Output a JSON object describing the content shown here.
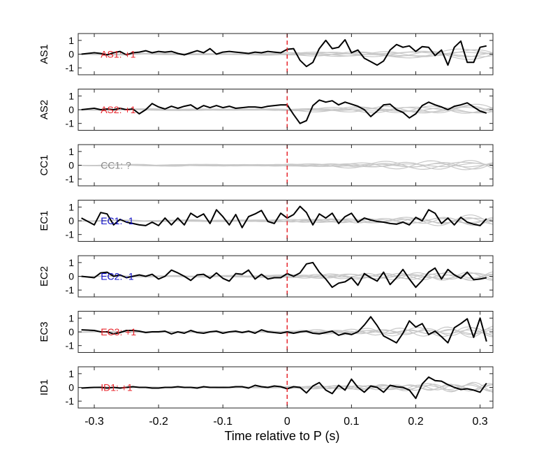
{
  "xlabel": "Time relative to P (s)",
  "xticks": [
    "-0.3",
    "-0.2",
    "-0.1",
    "0",
    "0.1",
    "0.2",
    "0.3"
  ],
  "xlim": [
    -0.325,
    0.32
  ],
  "ylim": [
    -1.5,
    1.5
  ],
  "yticks": [
    "1",
    "0",
    "-1"
  ],
  "colors": {
    "trace": "#000000",
    "background_traces": "#c8c8c8",
    "marker": "#e8242b",
    "positive": "#e8242b",
    "negative": "#1010c8",
    "unknown": "#888888"
  },
  "chart_data": [
    {
      "type": "line",
      "ylabel": "AS1",
      "annotation": "AS1: +1",
      "polarity": "positive",
      "series": [
        {
          "x": [
            -0.32,
            -0.3,
            -0.29,
            -0.28,
            -0.27,
            -0.26,
            -0.25,
            -0.24,
            -0.23,
            -0.22,
            -0.21,
            -0.2,
            -0.19,
            -0.18,
            -0.17,
            -0.16,
            -0.15,
            -0.14,
            -0.13,
            -0.12,
            -0.11,
            -0.1,
            -0.09,
            -0.08,
            -0.07,
            -0.06,
            -0.05,
            -0.04,
            -0.03,
            -0.02,
            -0.01,
            0,
            0.01,
            0.02,
            0.03,
            0.04,
            0.05,
            0.06,
            0.07,
            0.08,
            0.09,
            0.1,
            0.11,
            0.12,
            0.13,
            0.14,
            0.15,
            0.16,
            0.17,
            0.18,
            0.19,
            0.2,
            0.21,
            0.22,
            0.23,
            0.24,
            0.25,
            0.26,
            0.27,
            0.28,
            0.29,
            0.3,
            0.31
          ],
          "y": [
            0.0,
            0.1,
            0.05,
            -0.05,
            0.1,
            0.2,
            -0.05,
            0.1,
            0.15,
            0.25,
            0.1,
            0.2,
            0.15,
            0.2,
            0.05,
            -0.05,
            0.1,
            0.25,
            0.1,
            0.4,
            0.0,
            0.15,
            0.2,
            0.15,
            0.1,
            0.05,
            0.15,
            0.1,
            0.2,
            0.15,
            0.1,
            0.35,
            0.4,
            -0.45,
            -0.9,
            -0.6,
            0.4,
            1.0,
            0.4,
            0.5,
            1.05,
            0.1,
            0.3,
            -0.3,
            -0.55,
            -0.8,
            -0.5,
            0.3,
            0.7,
            0.5,
            0.6,
            0.2,
            0.55,
            0.5,
            -0.1,
            0.3,
            -0.8,
            0.5,
            0.95,
            -0.6,
            -0.6,
            0.5,
            0.6
          ]
        }
      ]
    },
    {
      "type": "line",
      "ylabel": "AS2",
      "annotation": "AS2: +1",
      "polarity": "positive",
      "series": [
        {
          "x": [
            -0.32,
            -0.3,
            -0.29,
            -0.28,
            -0.27,
            -0.26,
            -0.25,
            -0.24,
            -0.23,
            -0.22,
            -0.21,
            -0.2,
            -0.19,
            -0.18,
            -0.17,
            -0.16,
            -0.15,
            -0.14,
            -0.13,
            -0.12,
            -0.11,
            -0.1,
            -0.09,
            -0.08,
            -0.07,
            -0.06,
            -0.05,
            -0.04,
            -0.03,
            -0.02,
            -0.01,
            0,
            0.01,
            0.02,
            0.03,
            0.04,
            0.05,
            0.06,
            0.07,
            0.08,
            0.09,
            0.1,
            0.11,
            0.12,
            0.13,
            0.14,
            0.15,
            0.16,
            0.17,
            0.18,
            0.19,
            0.2,
            0.21,
            0.22,
            0.23,
            0.24,
            0.25,
            0.26,
            0.27,
            0.28,
            0.29,
            0.3,
            0.31
          ],
          "y": [
            0.0,
            0.1,
            0.0,
            0.05,
            0.0,
            0.1,
            0.0,
            0.05,
            -0.3,
            0.0,
            0.45,
            0.2,
            0.05,
            0.25,
            0.1,
            0.25,
            0.35,
            0.05,
            0.3,
            0.15,
            0.3,
            0.15,
            0.25,
            0.1,
            0.15,
            0.2,
            0.2,
            0.15,
            0.25,
            0.3,
            0.35,
            0.35,
            -0.35,
            -1.0,
            -0.8,
            0.3,
            0.7,
            0.55,
            0.65,
            0.35,
            0.55,
            0.4,
            0.25,
            0.0,
            -0.5,
            -0.1,
            0.35,
            0.4,
            0.0,
            -0.2,
            -0.6,
            -0.3,
            0.3,
            0.55,
            0.35,
            0.2,
            0.0,
            0.25,
            0.35,
            0.5,
            0.2,
            -0.1,
            -0.25
          ]
        }
      ]
    },
    {
      "type": "line",
      "ylabel": "CC1",
      "annotation": "CC1: ?",
      "polarity": "unknown",
      "series": []
    },
    {
      "type": "line",
      "ylabel": "EC1",
      "annotation": "EC1: -1",
      "polarity": "negative",
      "series": [
        {
          "x": [
            -0.32,
            -0.3,
            -0.29,
            -0.28,
            -0.27,
            -0.26,
            -0.25,
            -0.24,
            -0.23,
            -0.22,
            -0.21,
            -0.2,
            -0.19,
            -0.18,
            -0.17,
            -0.16,
            -0.15,
            -0.14,
            -0.13,
            -0.12,
            -0.11,
            -0.1,
            -0.09,
            -0.08,
            -0.07,
            -0.06,
            -0.05,
            -0.04,
            -0.03,
            -0.02,
            -0.01,
            0,
            0.01,
            0.02,
            0.03,
            0.04,
            0.05,
            0.06,
            0.07,
            0.08,
            0.09,
            0.1,
            0.11,
            0.12,
            0.13,
            0.14,
            0.15,
            0.16,
            0.17,
            0.18,
            0.19,
            0.2,
            0.21,
            0.22,
            0.23,
            0.24,
            0.25,
            0.26,
            0.27,
            0.28,
            0.29,
            0.3,
            0.31
          ],
          "y": [
            0.2,
            -0.3,
            0.6,
            0.5,
            -0.3,
            0.1,
            -0.1,
            -0.2,
            -0.3,
            -0.35,
            -0.1,
            -0.35,
            0.2,
            -0.3,
            0.2,
            -0.3,
            0.55,
            0.25,
            0.5,
            -0.2,
            0.8,
            0.3,
            -0.3,
            0.45,
            -0.5,
            0.3,
            0.5,
            0.75,
            -0.05,
            -0.2,
            0.55,
            0.2,
            0.45,
            1.05,
            0.6,
            -0.3,
            0.5,
            0.2,
            0.55,
            -0.2,
            0.3,
            0.55,
            -0.1,
            0.2,
            0.05,
            -0.05,
            -0.1,
            -0.2,
            -0.25,
            -0.1,
            -0.3,
            0.25,
            0.0,
            0.8,
            0.55,
            -0.2,
            0.2,
            -0.3,
            0.25,
            -0.1,
            -0.25,
            -0.35,
            0.15
          ]
        }
      ]
    },
    {
      "type": "line",
      "ylabel": "EC2",
      "annotation": "EC2: -1",
      "polarity": "negative",
      "series": [
        {
          "x": [
            -0.32,
            -0.3,
            -0.29,
            -0.28,
            -0.27,
            -0.26,
            -0.25,
            -0.24,
            -0.23,
            -0.22,
            -0.21,
            -0.2,
            -0.19,
            -0.18,
            -0.17,
            -0.16,
            -0.15,
            -0.14,
            -0.13,
            -0.12,
            -0.11,
            -0.1,
            -0.09,
            -0.08,
            -0.07,
            -0.06,
            -0.05,
            -0.04,
            -0.03,
            -0.02,
            -0.01,
            0,
            0.01,
            0.02,
            0.03,
            0.04,
            0.05,
            0.06,
            0.07,
            0.08,
            0.09,
            0.1,
            0.11,
            0.12,
            0.13,
            0.14,
            0.15,
            0.16,
            0.17,
            0.18,
            0.19,
            0.2,
            0.21,
            0.22,
            0.23,
            0.24,
            0.25,
            0.26,
            0.27,
            0.28,
            0.29,
            0.3,
            0.31
          ],
          "y": [
            0.0,
            -0.1,
            0.25,
            0.3,
            0.0,
            0.1,
            -0.1,
            0.0,
            0.1,
            0.0,
            0.15,
            -0.2,
            0.0,
            0.45,
            0.25,
            0.0,
            -0.3,
            0.1,
            0.15,
            -0.15,
            0.25,
            -0.15,
            -0.35,
            0.2,
            0.15,
            0.45,
            -0.2,
            0.15,
            -0.2,
            -0.1,
            -0.1,
            0.2,
            0.0,
            0.25,
            0.9,
            1.0,
            0.3,
            -0.2,
            -0.8,
            -0.5,
            -0.4,
            -0.1,
            -0.65,
            0.2,
            -0.1,
            -0.35,
            0.3,
            -0.6,
            -0.1,
            0.5,
            -0.2,
            -0.8,
            -0.3,
            0.3,
            0.6,
            -0.2,
            0.5,
            0.1,
            -0.15,
            0.3,
            -0.25,
            -0.2,
            -0.1
          ]
        }
      ]
    },
    {
      "type": "line",
      "ylabel": "EC3",
      "annotation": "EC3: +1",
      "polarity": "positive",
      "series": [
        {
          "x": [
            -0.32,
            -0.3,
            -0.29,
            -0.28,
            -0.27,
            -0.26,
            -0.25,
            -0.24,
            -0.23,
            -0.22,
            -0.21,
            -0.2,
            -0.19,
            -0.18,
            -0.17,
            -0.16,
            -0.15,
            -0.14,
            -0.13,
            -0.12,
            -0.11,
            -0.1,
            -0.09,
            -0.08,
            -0.07,
            -0.06,
            -0.05,
            -0.04,
            -0.03,
            -0.02,
            -0.01,
            0,
            0.01,
            0.02,
            0.03,
            0.04,
            0.05,
            0.06,
            0.07,
            0.08,
            0.09,
            0.1,
            0.11,
            0.12,
            0.13,
            0.14,
            0.15,
            0.16,
            0.17,
            0.18,
            0.19,
            0.2,
            0.21,
            0.22,
            0.23,
            0.24,
            0.25,
            0.26,
            0.27,
            0.28,
            0.29,
            0.3,
            0.31
          ],
          "y": [
            0.15,
            0.1,
            0.0,
            0.0,
            -0.15,
            -0.05,
            0.1,
            0.1,
            0.05,
            -0.05,
            0.0,
            0.0,
            0.05,
            -0.15,
            0.0,
            -0.1,
            0.1,
            -0.05,
            -0.1,
            0.0,
            0.05,
            -0.1,
            0.0,
            0.05,
            -0.05,
            0.05,
            -0.1,
            0.15,
            0.0,
            -0.05,
            -0.1,
            0.0,
            -0.1,
            0.0,
            0.05,
            -0.1,
            -0.15,
            -0.05,
            0.05,
            -0.25,
            -0.1,
            -0.2,
            0.0,
            0.5,
            1.1,
            0.45,
            -0.3,
            -0.55,
            -0.8,
            -0.1,
            0.8,
            0.35,
            0.6,
            -0.2,
            0.05,
            -0.35,
            -0.8,
            0.3,
            0.6,
            0.95,
            -0.4,
            1.0,
            -0.7
          ]
        }
      ]
    },
    {
      "type": "line",
      "ylabel": "ID1",
      "annotation": "ID1: +1",
      "polarity": "positive",
      "series": [
        {
          "x": [
            -0.32,
            -0.3,
            -0.29,
            -0.28,
            -0.27,
            -0.26,
            -0.25,
            -0.24,
            -0.23,
            -0.22,
            -0.21,
            -0.2,
            -0.19,
            -0.18,
            -0.17,
            -0.16,
            -0.15,
            -0.14,
            -0.13,
            -0.12,
            -0.11,
            -0.1,
            -0.09,
            -0.08,
            -0.07,
            -0.06,
            -0.05,
            -0.04,
            -0.03,
            -0.02,
            -0.01,
            0,
            0.01,
            0.02,
            0.03,
            0.04,
            0.05,
            0.06,
            0.07,
            0.08,
            0.09,
            0.1,
            0.11,
            0.12,
            0.13,
            0.14,
            0.15,
            0.16,
            0.17,
            0.18,
            0.19,
            0.2,
            0.21,
            0.22,
            0.23,
            0.24,
            0.25,
            0.26,
            0.27,
            0.28,
            0.29,
            0.3,
            0.31
          ],
          "y": [
            -0.05,
            0.0,
            0.0,
            -0.05,
            0.0,
            -0.05,
            0.0,
            0.05,
            0.0,
            0.0,
            -0.05,
            -0.05,
            0.0,
            0.0,
            0.05,
            0.0,
            0.0,
            -0.05,
            0.05,
            0.0,
            0.0,
            0.0,
            0.0,
            0.05,
            0.05,
            -0.05,
            0.15,
            0.05,
            0.0,
            0.1,
            0.05,
            -0.1,
            0.05,
            0.0,
            -0.4,
            0.1,
            0.35,
            -0.2,
            -0.45,
            0.15,
            -0.2,
            0.6,
            0.0,
            -0.35,
            0.1,
            0.0,
            -0.35,
            0.15,
            0.05,
            0.0,
            -0.2,
            -0.8,
            0.25,
            0.75,
            0.5,
            0.45,
            0.2,
            0.0,
            -0.15,
            -0.1,
            -0.2,
            -0.35,
            0.3
          ]
        }
      ]
    }
  ]
}
